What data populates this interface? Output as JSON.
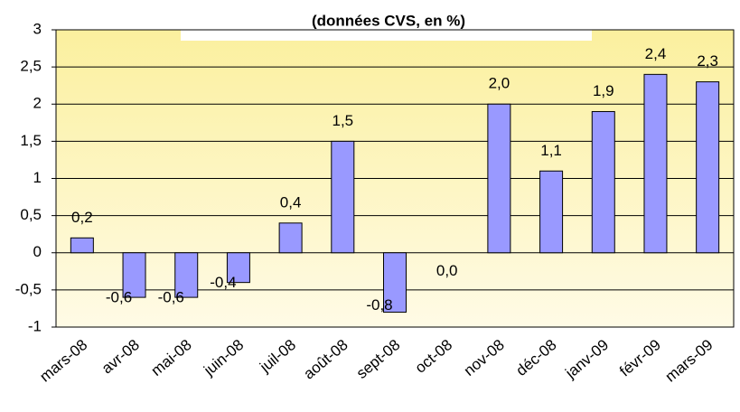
{
  "chart_data": {
    "type": "bar",
    "title": "(données CVS, en %)",
    "categories": [
      "mars-08",
      "avr-08",
      "mai-08",
      "juin-08",
      "juil-08",
      "août-08",
      "sept-08",
      "oct-08",
      "nov-08",
      "déc-08",
      "janv-09",
      "févr-09",
      "mars-09"
    ],
    "values": [
      0.2,
      -0.6,
      -0.6,
      -0.4,
      0.4,
      1.5,
      -0.8,
      0.0,
      2.0,
      1.1,
      1.9,
      2.4,
      2.3
    ],
    "value_labels": [
      "0,2",
      "-0,6",
      "-0,6",
      "-0,4",
      "0,4",
      "1,5",
      "-0,8",
      "0,0",
      "2,0",
      "1,1",
      "1,9",
      "2,4",
      "2,3"
    ],
    "color": "#9999ff",
    "ylim": [
      -1,
      3
    ],
    "yticks": [
      -1,
      {
        "value": -0.5,
        "label": "-0,5"
      },
      0,
      {
        "value": 0.5,
        "label": "0,5"
      },
      1,
      {
        "value": 1.5,
        "label": "1,5"
      },
      2,
      {
        "value": 2.5,
        "label": "2,5"
      },
      3
    ],
    "grid": true
  }
}
